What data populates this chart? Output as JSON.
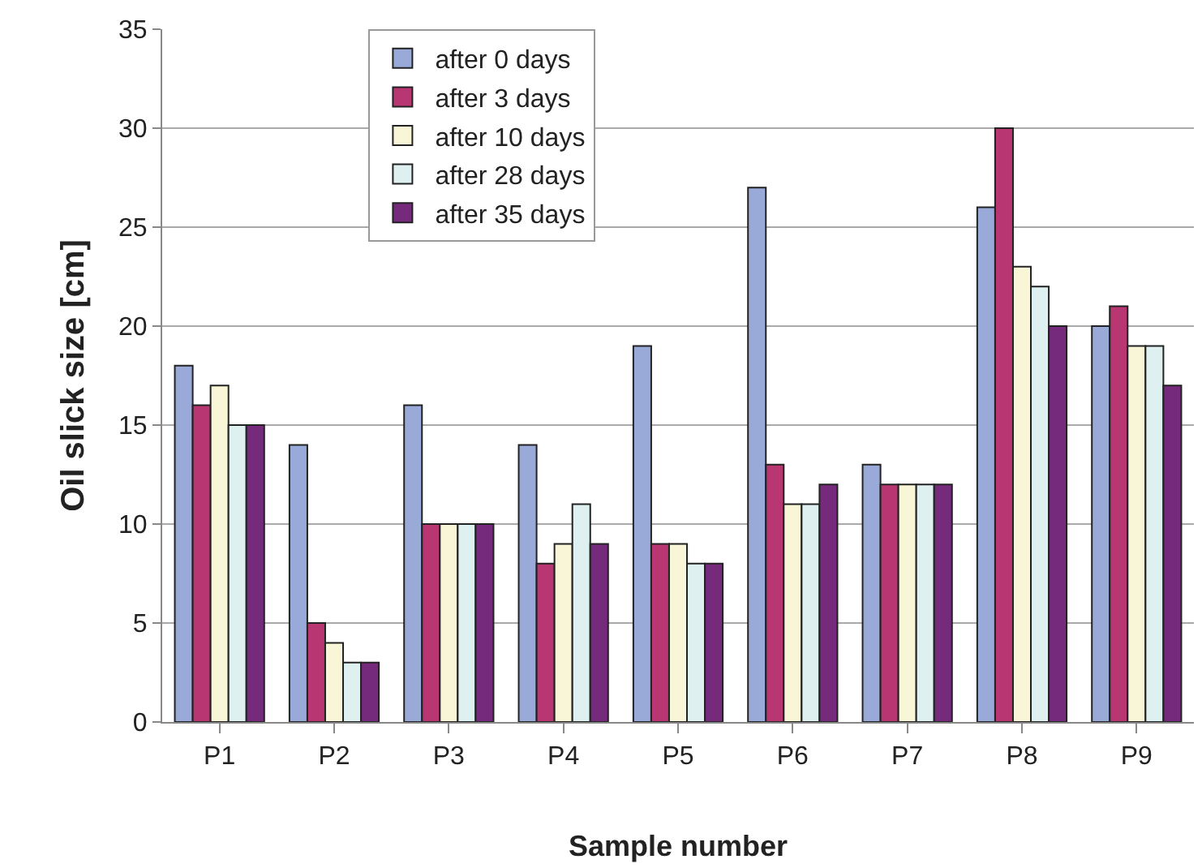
{
  "chart_data": {
    "type": "bar",
    "xlabel": "Sample number",
    "ylabel": "Oil slick size [cm]",
    "categories": [
      "P1",
      "P2",
      "P3",
      "P4",
      "P5",
      "P6",
      "P7",
      "P8",
      "P9"
    ],
    "series": [
      {
        "name": "after 0 days",
        "color": "#9aaad8",
        "values": [
          18,
          14,
          16,
          14,
          19,
          27,
          13,
          26,
          20
        ]
      },
      {
        "name": "after 3 days",
        "color": "#b83672",
        "values": [
          16,
          5,
          10,
          8,
          9,
          13,
          12,
          30,
          21
        ]
      },
      {
        "name": "after 10 days",
        "color": "#f8f6d6",
        "values": [
          17,
          4,
          10,
          9,
          9,
          11,
          12,
          23,
          19
        ]
      },
      {
        "name": "after 28 days",
        "color": "#def0f0",
        "values": [
          15,
          3,
          10,
          11,
          8,
          11,
          12,
          22,
          19
        ]
      },
      {
        "name": "after 35 days",
        "color": "#762a7c",
        "values": [
          15,
          3,
          10,
          9,
          8,
          12,
          12,
          20,
          17
        ]
      }
    ],
    "ylim": [
      0,
      35
    ],
    "yticks": [
      0,
      5,
      10,
      15,
      20,
      25,
      30,
      35
    ],
    "grid": "y",
    "legend": "top"
  }
}
